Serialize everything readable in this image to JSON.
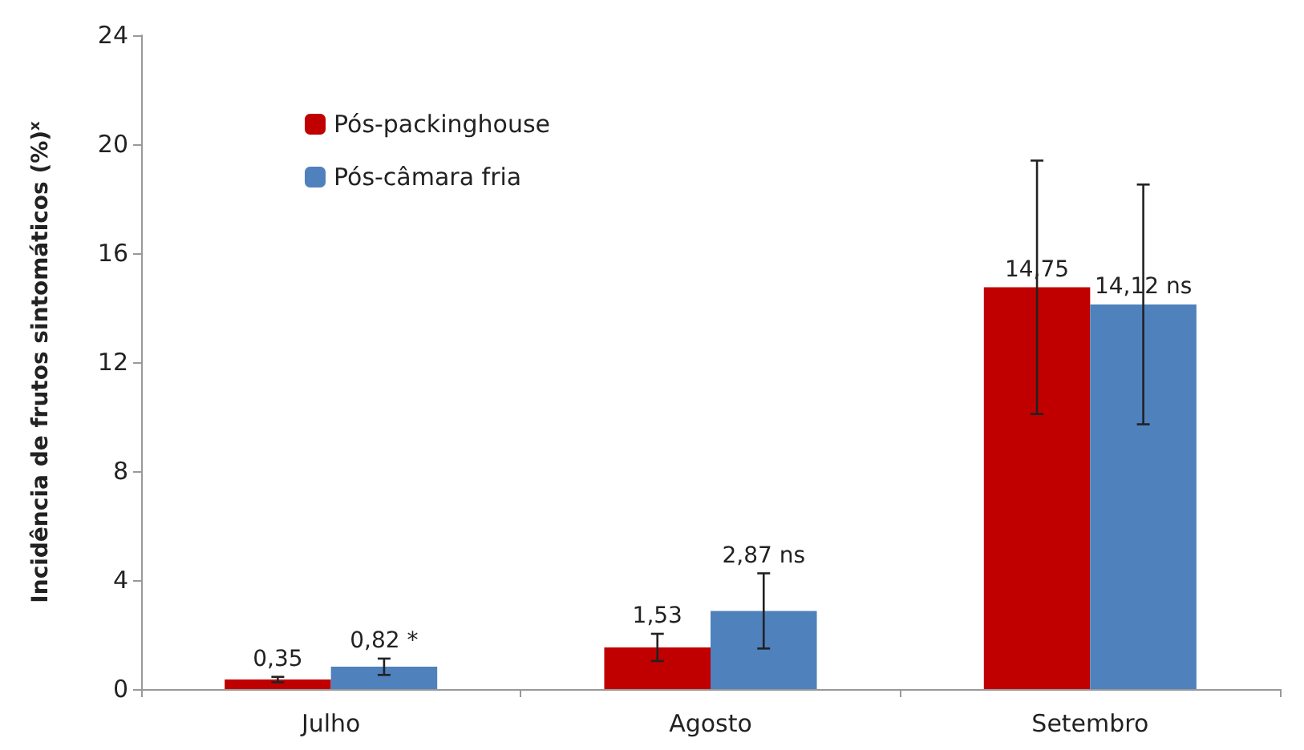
{
  "chart_data": {
    "type": "bar",
    "ylabel": "Incidência de frutos sintomáticos (%)$^{x}$",
    "categories": [
      "Julho",
      "Agosto",
      "Setembro"
    ],
    "series": [
      {
        "name": "Pós-packinghouse",
        "color": "#c00000",
        "values": [
          0.35,
          1.53,
          14.75
        ],
        "errors": [
          0.1,
          0.5,
          4.65
        ],
        "value_labels": [
          "0,35",
          "1,53",
          "14,75"
        ]
      },
      {
        "name": "Pós-câmara fria",
        "color": "#4f81bd",
        "values": [
          0.82,
          2.87,
          14.12
        ],
        "errors": [
          0.3,
          1.38,
          4.4
        ],
        "value_labels": [
          "0,82 *",
          "2,87 ns",
          "14,12 ns"
        ]
      }
    ],
    "ylim": [
      0,
      24
    ],
    "yticks": [
      0,
      4,
      8,
      12,
      16,
      20,
      24
    ],
    "grid": false,
    "legend": "top left"
  }
}
